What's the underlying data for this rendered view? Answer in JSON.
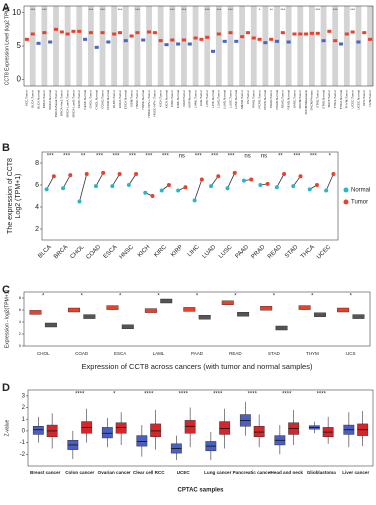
{
  "chart_data": [
    {
      "type": "strip",
      "panel": "A",
      "ylabel": "CCT8 Expression Level (log2 TPM)",
      "ylim": [
        -1,
        11
      ],
      "yticks": [
        0,
        5,
        10
      ],
      "categories": [
        "ACC.Tumor",
        "BLCA.Tumor",
        "BLCA.Normal",
        "BRCA.Tumor",
        "BRCA.Normal",
        "BRCA-Basal.Tumor",
        "BRCA-Her2.Tumor",
        "BRCA-LumA.Tumor",
        "BRCA-LumB.Tumor",
        "CESC.Tumor",
        "CESC.Normal",
        "CHOL.Tumor",
        "CHOL.Normal",
        "COAD.Tumor",
        "COAD.Normal",
        "DLBC.Tumor",
        "ESCA.Tumor",
        "ESCA.Normal",
        "GBM.Tumor",
        "HNSC.Tumor",
        "HNSC.Normal",
        "HNSC-HPV+.Tumor",
        "HNSC-HPV-.Tumor",
        "KICH.Tumor",
        "KICH.Normal",
        "KIRC.Tumor",
        "KIRC.Normal",
        "KIRP.Tumor",
        "KIRP.Normal",
        "LAML.Tumor",
        "LGG.Tumor",
        "LIHC.Tumor",
        "LIHC.Normal",
        "LUAD.Tumor",
        "LUAD.Normal",
        "LUSC.Tumor",
        "LUSC.Normal",
        "MESO.Tumor",
        "OV.Tumor",
        "PAAD.Tumor",
        "PCPG.Tumor",
        "PCPG.Normal",
        "PRAD.Tumor",
        "PRAD.Normal",
        "READ.Tumor",
        "READ.Normal",
        "SARC.Tumor",
        "SKCM.Tumor",
        "SKCM.Metastasis",
        "SKCM.Primary",
        "STAD.Tumor",
        "STAD.Normal",
        "TGCT.Tumor",
        "THCA.Tumor",
        "THCA.Normal",
        "THYM.Tumor",
        "UCEC.Tumor",
        "UCEC.Normal",
        "UCS.Tumor",
        "UVM.Tumor"
      ],
      "values": [
        6.0,
        6.8,
        5.4,
        7.0,
        5.6,
        7.5,
        7.1,
        6.8,
        7.2,
        7.2,
        6.0,
        7.0,
        4.8,
        7.0,
        5.6,
        6.8,
        7.0,
        5.8,
        6.5,
        7.0,
        5.9,
        7.1,
        7.0,
        5.8,
        5.2,
        5.9,
        5.3,
        5.9,
        5.3,
        6.2,
        6.0,
        6.3,
        4.2,
        6.8,
        5.7,
        7.0,
        5.7,
        6.4,
        7.0,
        6.2,
        6.0,
        5.5,
        6.0,
        5.7,
        7.0,
        5.6,
        6.8,
        6.8,
        6.8,
        6.9,
        6.9,
        5.8,
        7.2,
        5.8,
        5.3,
        6.8,
        7.1,
        5.6,
        7.0,
        6.0
      ],
      "colors": [
        "#e8412c",
        "#e8412c",
        "#4a66c0",
        "#e8412c",
        "#4a66c0",
        "#e8412c",
        "#e8412c",
        "#e8412c",
        "#e8412c",
        "#e8412c",
        "#4a66c0",
        "#e8412c",
        "#4a66c0",
        "#e8412c",
        "#4a66c0",
        "#e8412c",
        "#e8412c",
        "#4a66c0",
        "#e8412c",
        "#e8412c",
        "#4a66c0",
        "#e8412c",
        "#e8412c",
        "#e8412c",
        "#4a66c0",
        "#e8412c",
        "#4a66c0",
        "#e8412c",
        "#4a66c0",
        "#e8412c",
        "#e8412c",
        "#e8412c",
        "#4a66c0",
        "#e8412c",
        "#4a66c0",
        "#e8412c",
        "#4a66c0",
        "#e8412c",
        "#e8412c",
        "#e8412c",
        "#e8412c",
        "#4a66c0",
        "#e8412c",
        "#4a66c0",
        "#e8412c",
        "#4a66c0",
        "#e8412c",
        "#e8412c",
        "#e8412c",
        "#e8412c",
        "#e8412c",
        "#4a66c0",
        "#e8412c",
        "#e8412c",
        "#4a66c0",
        "#e8412c",
        "#e8412c",
        "#4a66c0",
        "#e8412c",
        "#e8412c"
      ],
      "significance": [
        null,
        "***",
        null,
        "***",
        null,
        null,
        null,
        null,
        null,
        null,
        null,
        "***",
        null,
        "***",
        null,
        null,
        "***",
        null,
        null,
        "***",
        null,
        null,
        null,
        null,
        null,
        "***",
        null,
        "***",
        null,
        null,
        null,
        "***",
        null,
        "***",
        null,
        "***",
        null,
        null,
        null,
        null,
        "*",
        null,
        "**",
        null,
        "***",
        null,
        null,
        null,
        null,
        null,
        "***",
        null,
        null,
        "***",
        null,
        null,
        "***",
        null,
        null,
        null
      ]
    },
    {
      "type": "paired",
      "panel": "B",
      "ylabel": [
        "The expression of CCT8",
        "Log2 (TPM+1)"
      ],
      "ylim": [
        1,
        9
      ],
      "yticks": [
        2,
        4,
        6,
        8
      ],
      "legend": "right",
      "categories": [
        "BLCA",
        "BRCA",
        "CHOL",
        "COAD",
        "ESCA",
        "HNSC",
        "KICH",
        "KIRC",
        "KIRP",
        "LIHC",
        "LUAD",
        "LUSC",
        "PAAD",
        "PRAD",
        "READ",
        "STAD",
        "THCA",
        "UCEC"
      ],
      "series": [
        {
          "name": "Normal",
          "color": "#29b6c8",
          "values": [
            5.6,
            5.7,
            4.5,
            5.9,
            5.9,
            6.0,
            5.3,
            5.5,
            5.5,
            4.6,
            5.9,
            5.7,
            6.4,
            6.0,
            5.8,
            5.9,
            5.6,
            5.5
          ]
        },
        {
          "name": "Tumor",
          "color": "#e8412c",
          "values": [
            6.8,
            6.9,
            7.0,
            7.1,
            7.0,
            7.0,
            5.0,
            6.0,
            5.8,
            6.5,
            6.8,
            7.1,
            6.5,
            6.1,
            7.0,
            6.8,
            6.0,
            7.0
          ]
        }
      ],
      "significance": [
        "***",
        "***",
        "**",
        "***",
        "***",
        "***",
        "***",
        "***",
        "ns",
        "***",
        "***",
        "***",
        "ns",
        "ns",
        "**",
        "***",
        "***",
        "*"
      ]
    },
    {
      "type": "box",
      "panel": "C",
      "ylabel": "Expression - log2(TPM+1)",
      "title": "Expression of CCT8 across cancers (with tumor and normal samples)",
      "ylim": [
        0,
        9
      ],
      "yticks": [
        0,
        2,
        4,
        6,
        8
      ],
      "significance_color": "#d62728",
      "categories": [
        "CHOL",
        "COAD",
        "ESCA",
        "LAML",
        "PAAD",
        "READ",
        "STAD",
        "THYM",
        "UCS"
      ],
      "series": [
        {
          "name": "Tumor",
          "color": "#e8412c",
          "values": [
            5.6,
            6.0,
            6.4,
            5.9,
            6.1,
            7.2,
            6.3,
            6.4,
            6.0
          ]
        },
        {
          "name": "Normal",
          "color": "#555555",
          "values": [
            3.5,
            4.9,
            3.2,
            7.5,
            4.8,
            5.3,
            3.0,
            5.2,
            4.9
          ]
        }
      ],
      "significance": [
        "*",
        "*",
        "*",
        "*",
        "*",
        "*",
        "*",
        "*",
        "*"
      ]
    },
    {
      "type": "box",
      "panel": "D",
      "ylabel": "Z-value",
      "xlabel": "CPTAC samples",
      "ylim": [
        -3,
        3.5
      ],
      "yticks": [
        -2,
        -1,
        0,
        1,
        2,
        3
      ],
      "categories": [
        "Breast cancer",
        "Colon cancer",
        "Ovarian cancer",
        "Clear cell RCC",
        "UCEC",
        "Lung cancer",
        "Pancreatic cancer",
        "Head and neck",
        "Glioblastoma",
        "Liver cancer"
      ],
      "series": [
        {
          "name": "Normal",
          "color": "#4a5fc1",
          "values": [
            0.1,
            -1.2,
            -0.2,
            -0.9,
            -1.5,
            -1.3,
            0.9,
            -0.8,
            0.3,
            0.1
          ],
          "q1": [
            -0.3,
            -1.6,
            -0.6,
            -1.3,
            -1.9,
            -1.7,
            0.4,
            -1.2,
            0.15,
            -0.3
          ],
          "q3": [
            0.4,
            -0.8,
            0.3,
            -0.4,
            -1.1,
            -0.9,
            1.4,
            -0.4,
            0.45,
            0.5
          ],
          "low": [
            -1.0,
            -2.4,
            -1.4,
            -2.2,
            -2.5,
            -2.5,
            -0.4,
            -2.0,
            -0.2,
            -1.4
          ],
          "high": [
            1.2,
            0.0,
            1.1,
            0.5,
            -0.4,
            -0.1,
            2.5,
            0.5,
            0.8,
            1.6
          ]
        },
        {
          "name": "Tumor",
          "color": "#d7262b",
          "values": [
            0.0,
            0.3,
            0.3,
            0.0,
            0.4,
            0.2,
            -0.1,
            0.2,
            -0.1,
            0.1
          ],
          "q1": [
            -0.5,
            -0.2,
            -0.2,
            -0.5,
            -0.2,
            -0.3,
            -0.5,
            -0.3,
            -0.5,
            -0.4
          ],
          "q3": [
            0.5,
            0.8,
            0.7,
            0.6,
            0.9,
            0.8,
            0.4,
            0.7,
            0.3,
            0.6
          ],
          "low": [
            -1.5,
            -1.0,
            -1.2,
            -1.6,
            -1.4,
            -1.5,
            -1.4,
            -1.2,
            -1.1,
            -1.3
          ],
          "high": [
            1.5,
            1.9,
            1.6,
            1.8,
            2.0,
            1.9,
            1.4,
            1.8,
            1.2,
            1.7
          ]
        }
      ],
      "significance": [
        null,
        "****",
        "*",
        "****",
        "****",
        "****",
        "****",
        "****",
        "****",
        null
      ]
    }
  ]
}
